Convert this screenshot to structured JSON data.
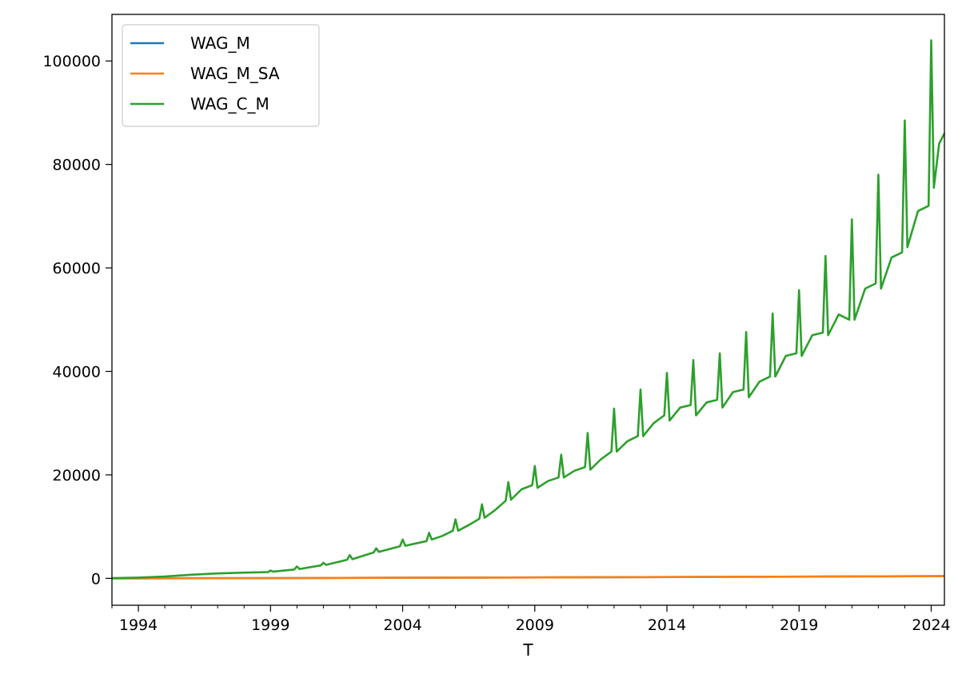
{
  "chart_data": {
    "type": "line",
    "title": "",
    "xlabel": "T",
    "ylabel": "",
    "xlim": [
      1993.0,
      2024.5
    ],
    "ylim": [
      -5200,
      109000
    ],
    "x_ticks": [
      1994,
      1999,
      2004,
      2009,
      2014,
      2019,
      2024
    ],
    "y_ticks": [
      0,
      20000,
      40000,
      60000,
      80000,
      100000
    ],
    "grid": false,
    "legend_position": "top-left",
    "colors": {
      "WAG_M": "#1f77b4",
      "WAG_M_SA": "#ff7f0e",
      "WAG_C_M": "#2ca02c"
    },
    "series": [
      {
        "name": "WAG_M",
        "x": [
          1993.0,
          1996.0,
          2000.0,
          2004.0,
          2008.0,
          2012.0,
          2016.0,
          2020.0,
          2024.5
        ],
        "values": [
          0,
          30,
          60,
          110,
          170,
          230,
          290,
          350,
          430
        ]
      },
      {
        "name": "WAG_M_SA",
        "x": [
          1993.0,
          1996.0,
          2000.0,
          2004.0,
          2008.0,
          2012.0,
          2016.0,
          2020.0,
          2024.5
        ],
        "values": [
          0,
          30,
          60,
          110,
          170,
          230,
          290,
          350,
          430
        ]
      },
      {
        "name": "WAG_C_M",
        "x": [
          1993.0,
          1994.0,
          1995.0,
          1996.0,
          1997.0,
          1998.0,
          1998.9,
          1999.0,
          1999.1,
          1999.9,
          2000.0,
          2000.1,
          2000.9,
          2001.0,
          2001.1,
          2001.9,
          2002.0,
          2002.1,
          2002.9,
          2003.0,
          2003.1,
          2003.9,
          2004.0,
          2004.1,
          2004.9,
          2005.0,
          2005.1,
          2005.5,
          2005.9,
          2006.0,
          2006.1,
          2006.5,
          2006.9,
          2007.0,
          2007.1,
          2007.5,
          2007.9,
          2008.0,
          2008.1,
          2008.5,
          2008.9,
          2009.0,
          2009.1,
          2009.5,
          2009.9,
          2010.0,
          2010.1,
          2010.5,
          2010.9,
          2011.0,
          2011.1,
          2011.5,
          2011.9,
          2012.0,
          2012.1,
          2012.5,
          2012.9,
          2013.0,
          2013.1,
          2013.5,
          2013.9,
          2014.0,
          2014.1,
          2014.5,
          2014.9,
          2015.0,
          2015.1,
          2015.5,
          2015.9,
          2016.0,
          2016.1,
          2016.5,
          2016.9,
          2017.0,
          2017.1,
          2017.5,
          2017.9,
          2018.0,
          2018.1,
          2018.5,
          2018.9,
          2019.0,
          2019.1,
          2019.5,
          2019.9,
          2020.0,
          2020.1,
          2020.5,
          2020.9,
          2021.0,
          2021.1,
          2021.5,
          2021.9,
          2022.0,
          2022.1,
          2022.5,
          2022.9,
          2023.0,
          2023.1,
          2023.5,
          2023.9,
          2024.0,
          2024.1,
          2024.3,
          2024.5
        ],
        "values": [
          50,
          150,
          350,
          700,
          950,
          1100,
          1200,
          1500,
          1300,
          1700,
          2300,
          1800,
          2500,
          3000,
          2600,
          3600,
          4500,
          3700,
          5000,
          5800,
          5100,
          6200,
          7500,
          6300,
          7200,
          8800,
          7500,
          8200,
          9200,
          11400,
          9200,
          10300,
          11500,
          14300,
          11700,
          13200,
          15000,
          18600,
          15200,
          17200,
          18000,
          21700,
          17500,
          18800,
          19500,
          23900,
          19500,
          20800,
          21500,
          28100,
          21000,
          23000,
          24500,
          32800,
          24500,
          26500,
          27500,
          36500,
          27500,
          30000,
          31500,
          39700,
          30500,
          33000,
          33500,
          42200,
          31500,
          34000,
          34500,
          43500,
          33000,
          36000,
          36500,
          47600,
          35000,
          38000,
          39000,
          51200,
          39000,
          43000,
          43500,
          55700,
          43000,
          47000,
          47500,
          62300,
          47000,
          51000,
          50000,
          69400,
          50000,
          56000,
          57000,
          78000,
          56000,
          62000,
          63000,
          88500,
          64000,
          71000,
          72000,
          104000,
          75500,
          84000,
          86000
        ]
      }
    ]
  }
}
